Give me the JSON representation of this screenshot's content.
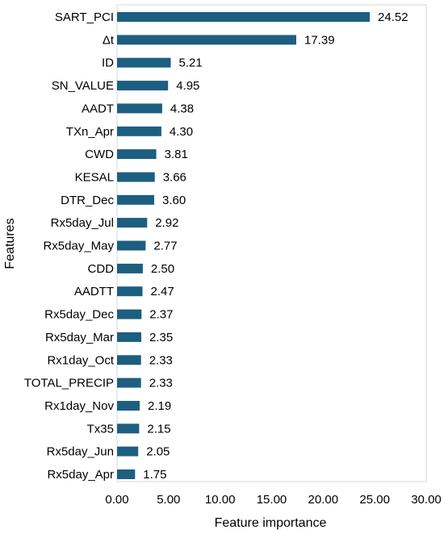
{
  "chart_data": {
    "type": "bar",
    "orientation": "horizontal",
    "title": "",
    "xlabel": "Feature importance",
    "ylabel": "Features",
    "xlim": [
      0,
      30
    ],
    "x_ticks": [
      "0.00",
      "5.00",
      "10.00",
      "15.00",
      "20.00",
      "25.00",
      "30.00"
    ],
    "grid": false,
    "legend": "none",
    "bar_color": "#1d5f80",
    "categories": [
      "SART_PCI",
      "Δt",
      "ID",
      "SN_VALUE",
      "AADT",
      "TXn_Apr",
      "CWD",
      "KESAL",
      "DTR_Dec",
      "Rx5day_Jul",
      "Rx5day_May",
      "CDD",
      "AADTT",
      "Rx5day_Dec",
      "Rx5day_Mar",
      "Rx1day_Oct",
      "TOTAL_PRECIP",
      "Rx1day_Nov",
      "Tx35",
      "Rx5day_Jun",
      "Rx5day_Apr"
    ],
    "values": [
      24.52,
      17.39,
      5.21,
      4.95,
      4.38,
      4.3,
      3.81,
      3.66,
      3.6,
      2.92,
      2.77,
      2.5,
      2.47,
      2.37,
      2.35,
      2.33,
      2.33,
      2.19,
      2.15,
      2.05,
      1.75
    ],
    "value_labels": [
      "24.52",
      "17.39",
      "5.21",
      "4.95",
      "4.38",
      "4.30",
      "3.81",
      "3.66",
      "3.60",
      "2.92",
      "2.77",
      "2.50",
      "2.47",
      "2.37",
      "2.35",
      "2.33",
      "2.33",
      "2.19",
      "2.15",
      "2.05",
      "1.75"
    ]
  }
}
